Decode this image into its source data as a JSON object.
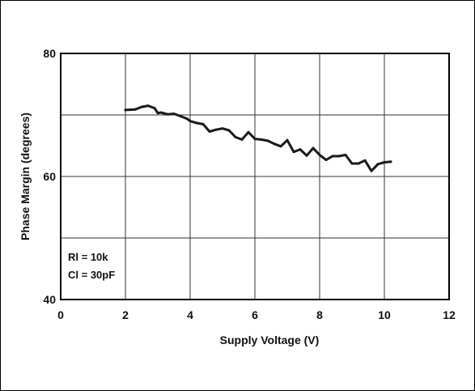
{
  "chart_data": {
    "type": "line",
    "title": "",
    "xlabel": "Supply Voltage (V)",
    "ylabel": "Phase Margin (degrees)",
    "xlim": [
      0,
      12
    ],
    "ylim": [
      40,
      80
    ],
    "xticks": [
      "0",
      "2",
      "4",
      "6",
      "8",
      "10",
      "12"
    ],
    "yticks": [
      "40",
      "60",
      "80"
    ],
    "grid": true,
    "legend": "none",
    "annotations": [
      "Rl = 10k",
      "Cl = 30pF"
    ],
    "series": [
      {
        "x": [
          2.0,
          2.3,
          2.5,
          2.7,
          2.9,
          3.0,
          3.1,
          3.3,
          3.5,
          3.7,
          3.9,
          4.0,
          4.2,
          4.4,
          4.6,
          4.8,
          5.0,
          5.2,
          5.4,
          5.6,
          5.8,
          6.0,
          6.2,
          6.4,
          6.6,
          6.8,
          7.0,
          7.2,
          7.4,
          7.6,
          7.8,
          8.0,
          8.2,
          8.4,
          8.6,
          8.8,
          9.0,
          9.2,
          9.4,
          9.6,
          9.8,
          10.0,
          10.2
        ],
        "values": [
          70.8,
          70.9,
          71.3,
          71.5,
          71.1,
          70.3,
          70.4,
          70.1,
          70.2,
          69.8,
          69.4,
          69.0,
          68.7,
          68.5,
          67.3,
          67.6,
          67.8,
          67.5,
          66.4,
          66.0,
          67.2,
          66.1,
          66.0,
          65.8,
          65.3,
          64.9,
          65.9,
          64.0,
          64.4,
          63.4,
          64.6,
          63.5,
          62.7,
          63.3,
          63.3,
          63.5,
          62.1,
          62.1,
          62.6,
          60.9,
          62.0,
          62.3,
          62.4
        ]
      }
    ],
    "colors": {
      "line": "#1a1a1a",
      "grid": "#333333",
      "frame": "#000000"
    }
  }
}
